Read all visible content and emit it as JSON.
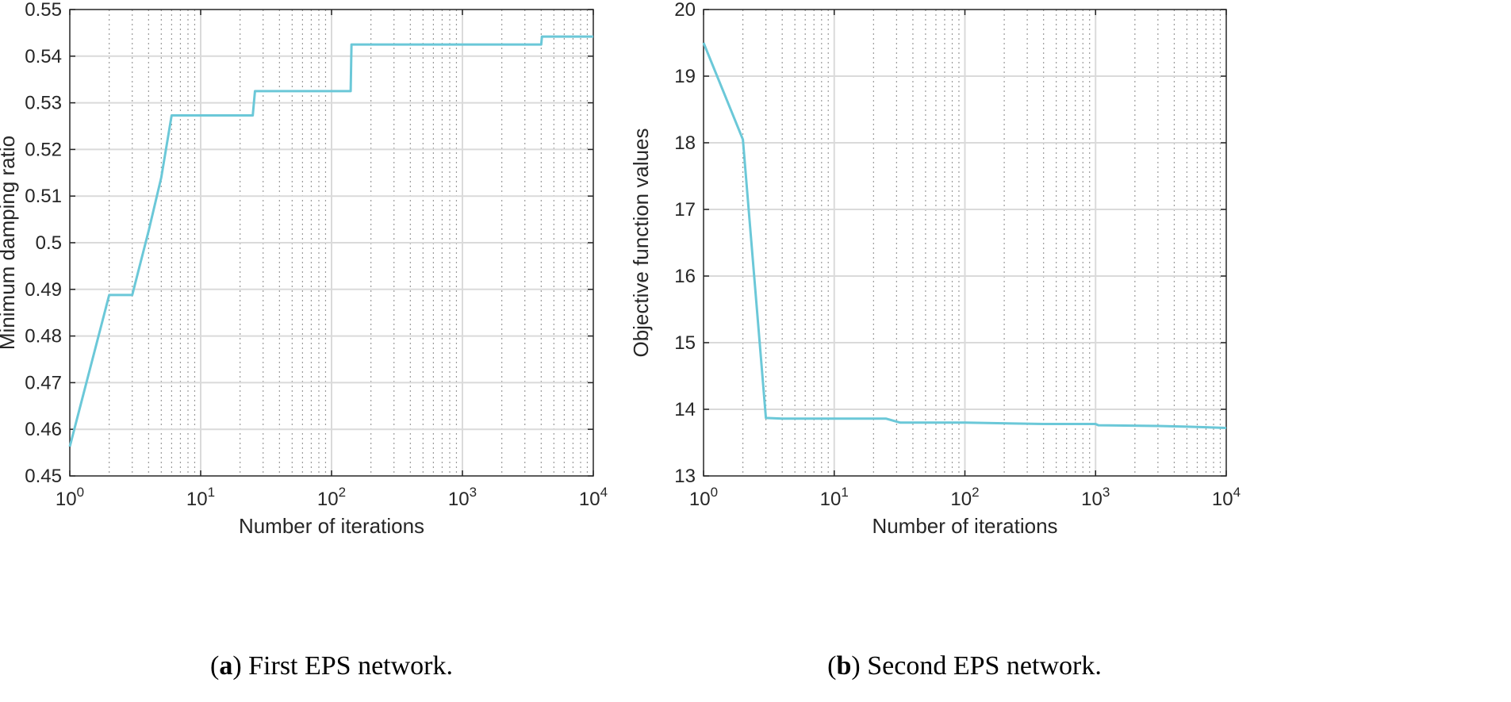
{
  "chart_data": [
    {
      "type": "line",
      "caption_letter": "a",
      "caption_text": "First EPS network.",
      "xlabel": "Number of iterations",
      "ylabel": "Minimum damping ratio",
      "xscale": "log",
      "xlim": [
        1,
        10000
      ],
      "ylim": [
        0.45,
        0.55
      ],
      "grid": true,
      "x_tick_labels": [
        {
          "base": "10",
          "exp": "0"
        },
        {
          "base": "10",
          "exp": "1"
        },
        {
          "base": "10",
          "exp": "2"
        },
        {
          "base": "10",
          "exp": "3"
        },
        {
          "base": "10",
          "exp": "4"
        }
      ],
      "y_ticks": [
        0.45,
        0.46,
        0.47,
        0.48,
        0.49,
        0.5,
        0.51,
        0.52,
        0.53,
        0.54,
        0.55
      ],
      "y_tick_labels": [
        "0.45",
        "0.46",
        "0.47",
        "0.48",
        "0.49",
        "0.5",
        "0.51",
        "0.52",
        "0.53",
        "0.54",
        "0.55"
      ],
      "line_color": "#6bc8d8",
      "series": [
        {
          "x": [
            1,
            2,
            3,
            4,
            5,
            6,
            25,
            26,
            140,
            142,
            4000,
            4050,
            10000
          ],
          "y": [
            0.4563,
            0.4888,
            0.4888,
            0.5025,
            0.514,
            0.5273,
            0.5273,
            0.5325,
            0.5325,
            0.5425,
            0.5425,
            0.5442,
            0.5442
          ]
        }
      ]
    },
    {
      "type": "line",
      "caption_letter": "b",
      "caption_text": "Second EPS network.",
      "xlabel": "Number of iterations",
      "ylabel": "Objective function values",
      "xscale": "log",
      "xlim": [
        1,
        10000
      ],
      "ylim": [
        13,
        20
      ],
      "grid": true,
      "x_tick_labels": [
        {
          "base": "10",
          "exp": "0"
        },
        {
          "base": "10",
          "exp": "1"
        },
        {
          "base": "10",
          "exp": "2"
        },
        {
          "base": "10",
          "exp": "3"
        },
        {
          "base": "10",
          "exp": "4"
        }
      ],
      "y_ticks": [
        13,
        14,
        15,
        16,
        17,
        18,
        19,
        20
      ],
      "y_tick_labels": [
        "13",
        "14",
        "15",
        "16",
        "17",
        "18",
        "19",
        "20"
      ],
      "line_color": "#6bc8d8",
      "series": [
        {
          "x": [
            1,
            2,
            3,
            4,
            10,
            25,
            32,
            100,
            400,
            1000,
            1050,
            3000,
            5000,
            10000
          ],
          "y": [
            19.5,
            18.05,
            13.87,
            13.86,
            13.86,
            13.86,
            13.8,
            13.8,
            13.78,
            13.78,
            13.76,
            13.75,
            13.74,
            13.72
          ]
        }
      ]
    }
  ]
}
